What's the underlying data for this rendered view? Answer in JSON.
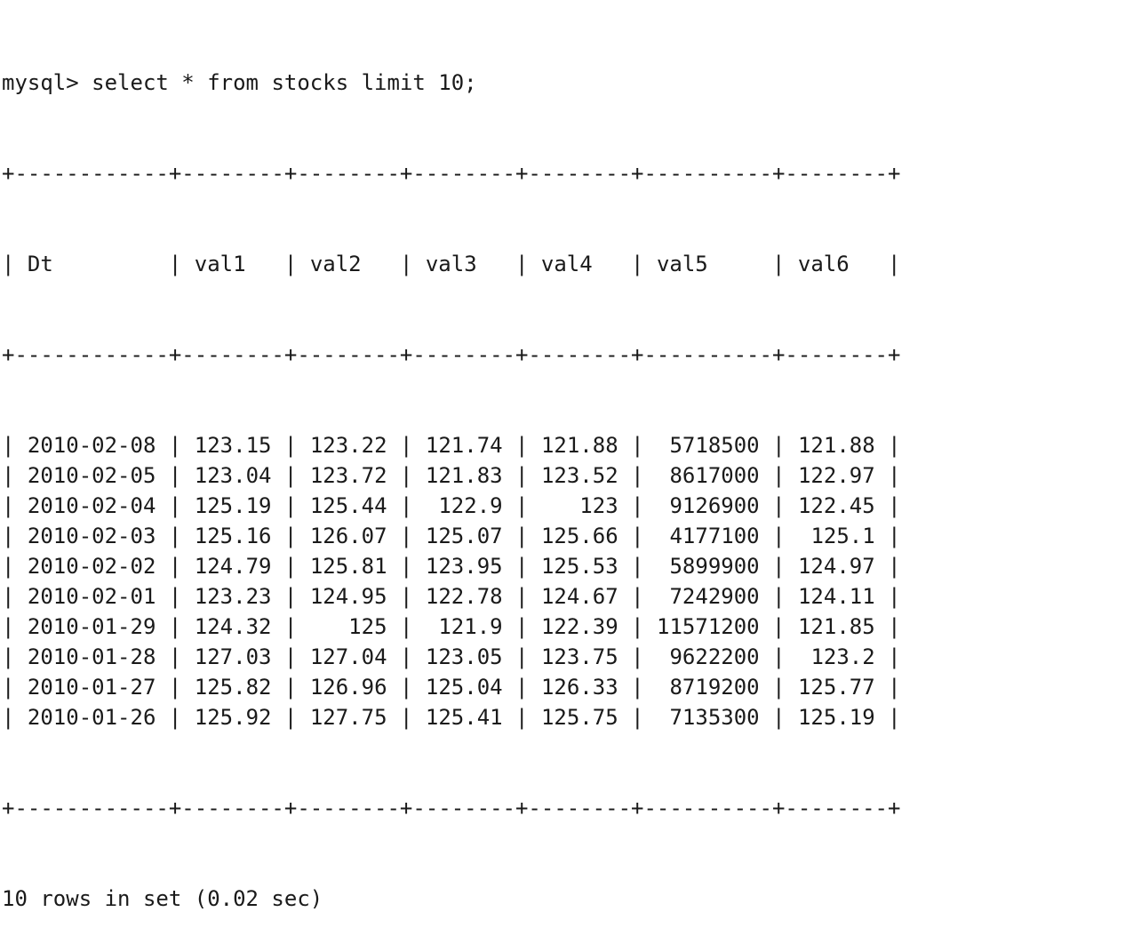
{
  "terminal": {
    "prompt": "mysql>",
    "command": "select * from stocks limit 10;",
    "footer": "10 rows in set (0.02 sec)"
  },
  "table": {
    "columns": [
      "Dt",
      "val1",
      "val2",
      "val3",
      "val4",
      "val5",
      "val6"
    ],
    "rows": [
      [
        "2010-02-08",
        "123.15",
        "123.22",
        "121.74",
        "121.88",
        "5718500",
        "121.88"
      ],
      [
        "2010-02-05",
        "123.04",
        "123.72",
        "121.83",
        "123.52",
        "8617000",
        "122.97"
      ],
      [
        "2010-02-04",
        "125.19",
        "125.44",
        "122.9",
        "123",
        "9126900",
        "122.45"
      ],
      [
        "2010-02-03",
        "125.16",
        "126.07",
        "125.07",
        "125.66",
        "4177100",
        "125.1"
      ],
      [
        "2010-02-02",
        "124.79",
        "125.81",
        "123.95",
        "125.53",
        "5899900",
        "124.97"
      ],
      [
        "2010-02-01",
        "123.23",
        "124.95",
        "122.78",
        "124.67",
        "7242900",
        "124.11"
      ],
      [
        "2010-01-29",
        "124.32",
        "125",
        "121.9",
        "122.39",
        "11571200",
        "121.85"
      ],
      [
        "2010-01-28",
        "127.03",
        "127.04",
        "123.05",
        "123.75",
        "9622200",
        "123.2"
      ],
      [
        "2010-01-27",
        "125.82",
        "126.96",
        "125.04",
        "126.33",
        "8719200",
        "125.77"
      ],
      [
        "2010-01-26",
        "125.92",
        "127.75",
        "125.41",
        "125.75",
        "7135300",
        "125.19"
      ]
    ]
  }
}
